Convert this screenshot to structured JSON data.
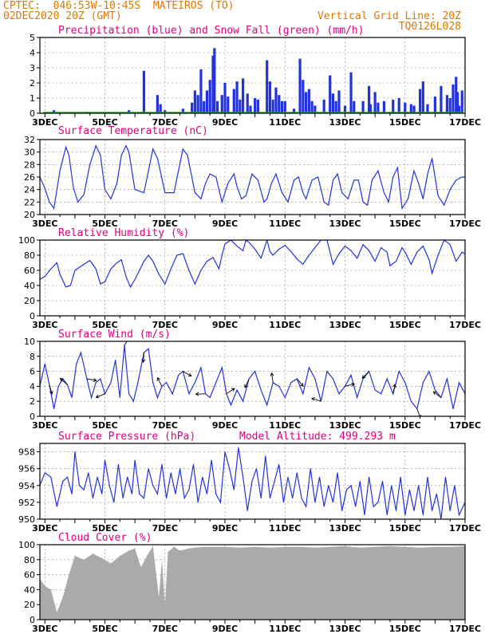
{
  "header": {
    "line1": "CPTEC:  046:53W-10:45S  MATEIROS (TO)",
    "line2": "02DEC2020 20Z (GMT)",
    "grid_note": "Vertical Grid Line: 20Z",
    "code": "TQ0126L028"
  },
  "colors": {
    "header": "#e07800",
    "title": "#e0007a",
    "line": "#2233dd",
    "rain": "#2233dd",
    "snow": "#22aa22",
    "cloud": "#aaaaaa",
    "axis": "#000000",
    "grid": "#888888"
  },
  "x_labels": [
    "3DEC",
    "5DEC",
    "7DEC",
    "9DEC",
    "11DEC",
    "13DEC",
    "15DEC",
    "17DEC"
  ],
  "x_label_days": [
    3,
    5,
    7,
    9,
    11,
    13,
    15,
    17
  ],
  "x_range_days": [
    2.8333,
    17.0
  ],
  "chart_data": [
    {
      "type": "bar",
      "title": "Precipitation (blue) and Snow Fall (green) (mm/h)",
      "ylim": [
        0,
        5
      ],
      "yticks": [
        0,
        1,
        2,
        3,
        4,
        5
      ],
      "series": [
        {
          "name": "Precipitation",
          "x": [
            3.3,
            4.4,
            5.8,
            6.3,
            6.75,
            6.85,
            7.0,
            7.6,
            7.9,
            8.0,
            8.1,
            8.2,
            8.3,
            8.4,
            8.5,
            8.6,
            8.65,
            8.75,
            8.9,
            9.0,
            9.1,
            9.3,
            9.4,
            9.5,
            9.6,
            9.75,
            9.85,
            10.0,
            10.1,
            10.4,
            10.5,
            10.6,
            10.7,
            10.8,
            10.9,
            11.0,
            11.3,
            11.5,
            11.6,
            11.7,
            11.8,
            11.9,
            12.0,
            12.3,
            12.5,
            12.6,
            12.7,
            12.8,
            13.0,
            13.2,
            13.3,
            13.6,
            13.8,
            13.85,
            14.0,
            14.1,
            14.3,
            14.6,
            14.8,
            15.0,
            15.2,
            15.3,
            15.5,
            15.6,
            15.75,
            16.0,
            16.2,
            16.4,
            16.5,
            16.6,
            16.7,
            16.75,
            16.8,
            16.9
          ],
          "values": [
            0.2,
            0.1,
            0.2,
            2.8,
            1.2,
            0.6,
            0.2,
            0.3,
            0.7,
            1.5,
            1.2,
            2.9,
            0.8,
            1.5,
            2.2,
            3.8,
            4.3,
            0.8,
            1.2,
            2.0,
            1.1,
            1.6,
            2.1,
            0.9,
            2.3,
            1.3,
            0.5,
            1.0,
            0.9,
            3.5,
            2.1,
            0.9,
            1.7,
            1.2,
            0.8,
            0.8,
            0.3,
            3.6,
            2.2,
            1.4,
            1.6,
            0.8,
            0.5,
            0.9,
            2.5,
            1.3,
            0.8,
            1.5,
            0.5,
            2.7,
            0.8,
            0.8,
            1.8,
            0.6,
            1.4,
            0.7,
            0.8,
            0.9,
            1.0,
            0.7,
            0.6,
            0.5,
            1.6,
            2.1,
            0.6,
            1.1,
            1.8,
            1.2,
            1.0,
            1.9,
            2.4,
            1.4,
            0.5,
            1.5
          ]
        },
        {
          "name": "Snow Fall",
          "x": [],
          "values": []
        }
      ]
    },
    {
      "type": "line",
      "title": "Surface Temperature (nC)",
      "ylim": [
        20,
        32
      ],
      "yticks": [
        20,
        22,
        24,
        26,
        28,
        30,
        32
      ],
      "x": [
        2.83,
        3.0,
        3.15,
        3.3,
        3.5,
        3.7,
        3.8,
        3.95,
        4.1,
        4.3,
        4.5,
        4.7,
        4.85,
        5.0,
        5.2,
        5.4,
        5.55,
        5.7,
        5.8,
        6.0,
        6.3,
        6.45,
        6.6,
        6.75,
        7.0,
        7.3,
        7.45,
        7.6,
        7.75,
        8.0,
        8.2,
        8.35,
        8.5,
        8.7,
        8.9,
        9.1,
        9.3,
        9.4,
        9.55,
        9.7,
        9.9,
        10.1,
        10.3,
        10.4,
        10.55,
        10.7,
        10.9,
        11.1,
        11.3,
        11.45,
        11.6,
        11.7,
        11.9,
        12.1,
        12.3,
        12.45,
        12.6,
        12.75,
        12.9,
        13.1,
        13.3,
        13.45,
        13.6,
        13.75,
        13.9,
        14.1,
        14.3,
        14.45,
        14.6,
        14.75,
        14.9,
        15.1,
        15.3,
        15.45,
        15.6,
        15.75,
        15.9,
        16.1,
        16.3,
        16.5,
        16.7,
        16.9,
        17.0
      ],
      "values": [
        26,
        24.2,
        22.0,
        21.0,
        27.0,
        30.8,
        29.5,
        24.3,
        22.0,
        23.2,
        28.0,
        31.0,
        29.5,
        24.0,
        22.5,
        25.0,
        29.5,
        31.0,
        30.0,
        24.0,
        23.5,
        27.0,
        30.5,
        29.0,
        23.5,
        23.5,
        27.0,
        30.5,
        29.5,
        23.5,
        22.5,
        25.0,
        26.5,
        26.0,
        22.0,
        25.0,
        26.5,
        24.5,
        22.5,
        23.0,
        26.5,
        25.5,
        22.0,
        22.5,
        25.0,
        26.5,
        23.5,
        22.0,
        25.5,
        26.0,
        23.5,
        22.5,
        25.5,
        26.0,
        22.0,
        21.5,
        25.5,
        26.5,
        23.5,
        22.5,
        25.5,
        25.5,
        22.0,
        21.5,
        25.5,
        27.0,
        23.5,
        22.0,
        26.0,
        27.5,
        21.0,
        22.5,
        27.0,
        25.0,
        22.5,
        26.5,
        29.0,
        23.0,
        21.5,
        24.0,
        25.5,
        26.0,
        26.0
      ]
    },
    {
      "type": "line",
      "title": "Relative Humidity (%)",
      "ylim": [
        0,
        100
      ],
      "yticks": [
        0,
        20,
        40,
        60,
        80,
        100
      ],
      "x": [
        2.83,
        3.0,
        3.2,
        3.4,
        3.5,
        3.7,
        3.85,
        4.0,
        4.3,
        4.5,
        4.7,
        4.85,
        5.0,
        5.2,
        5.4,
        5.55,
        5.7,
        5.85,
        6.0,
        6.3,
        6.45,
        6.6,
        6.8,
        7.0,
        7.2,
        7.4,
        7.6,
        7.8,
        8.0,
        8.2,
        8.4,
        8.6,
        8.8,
        8.9,
        9.0,
        9.2,
        9.4,
        9.6,
        9.7,
        9.8,
        10.0,
        10.2,
        10.4,
        10.5,
        10.6,
        10.8,
        11.0,
        11.2,
        11.4,
        11.6,
        11.8,
        12.0,
        12.2,
        12.4,
        12.5,
        12.6,
        12.8,
        13.0,
        13.2,
        13.4,
        13.6,
        13.8,
        14.0,
        14.2,
        14.4,
        14.5,
        14.7,
        14.9,
        15.0,
        15.2,
        15.4,
        15.6,
        15.8,
        15.9,
        16.1,
        16.3,
        16.5,
        16.7,
        16.9,
        17.0
      ],
      "values": [
        48,
        52,
        62,
        70,
        55,
        38,
        40,
        60,
        68,
        73,
        62,
        42,
        45,
        62,
        70,
        74,
        52,
        38,
        48,
        72,
        80,
        72,
        55,
        42,
        62,
        80,
        82,
        60,
        42,
        60,
        72,
        77,
        62,
        80,
        95,
        100,
        92,
        86,
        100,
        97,
        88,
        76,
        100,
        85,
        80,
        88,
        93,
        85,
        75,
        68,
        80,
        90,
        100,
        100,
        84,
        68,
        82,
        92,
        86,
        76,
        94,
        86,
        72,
        90,
        84,
        66,
        72,
        90,
        84,
        68,
        84,
        92,
        74,
        56,
        80,
        100,
        94,
        72,
        84,
        82
      ]
    },
    {
      "type": "line",
      "title": "Surface Wind (m/s)",
      "ylim": [
        0,
        10
      ],
      "yticks": [
        0,
        2,
        4,
        6,
        8,
        10
      ],
      "x": [
        2.83,
        3.0,
        3.15,
        3.3,
        3.45,
        3.6,
        3.75,
        3.9,
        4.05,
        4.2,
        4.4,
        4.55,
        4.7,
        4.85,
        5.0,
        5.2,
        5.35,
        5.5,
        5.65,
        5.8,
        5.95,
        6.1,
        6.3,
        6.45,
        6.6,
        6.75,
        6.9,
        7.05,
        7.25,
        7.45,
        7.6,
        7.8,
        8.0,
        8.2,
        8.35,
        8.5,
        8.7,
        8.9,
        9.05,
        9.2,
        9.4,
        9.6,
        9.8,
        10.0,
        10.2,
        10.4,
        10.6,
        10.8,
        11.0,
        11.2,
        11.4,
        11.6,
        11.8,
        12.0,
        12.2,
        12.4,
        12.6,
        12.8,
        13.0,
        13.2,
        13.4,
        13.6,
        13.8,
        14.0,
        14.2,
        14.4,
        14.6,
        14.8,
        15.0,
        15.2,
        15.4,
        15.6,
        15.8,
        16.0,
        16.2,
        16.4,
        16.6,
        16.8,
        17.0
      ],
      "values": [
        4,
        7.0,
        4.2,
        1.0,
        4.0,
        5.0,
        4.2,
        2.5,
        7.0,
        8.5,
        5.0,
        2.5,
        4.5,
        5.0,
        3.0,
        4.5,
        7.5,
        2.5,
        9.5,
        3.0,
        2.0,
        4.5,
        8.5,
        9.0,
        4.5,
        2.5,
        4.0,
        4.5,
        3.0,
        5.5,
        6.0,
        3.0,
        4.5,
        6.5,
        3.0,
        2.5,
        4.5,
        6.5,
        3.0,
        1.5,
        3.5,
        2.0,
        5.0,
        6.0,
        3.5,
        1.5,
        4.5,
        4.0,
        2.5,
        4.5,
        5.0,
        3.0,
        6.5,
        5.0,
        2.0,
        6.0,
        5.0,
        3.0,
        4.0,
        5.5,
        2.5,
        5.0,
        6.0,
        3.5,
        3.0,
        5.0,
        3.0,
        6.0,
        4.5,
        2.0,
        1.0,
        4.5,
        6.0,
        3.5,
        2.5,
        5.0,
        1.0,
        4.5,
        3.0
      ]
    },
    {
      "type": "line",
      "title": "Surface Pressure (hPa)",
      "annotation": "Model Altitude: 499.293 m",
      "ylim": [
        950,
        959
      ],
      "yticks": [
        950,
        952,
        954,
        956,
        958
      ],
      "x": [
        2.83,
        3.0,
        3.2,
        3.4,
        3.6,
        3.75,
        3.9,
        4.0,
        4.15,
        4.3,
        4.45,
        4.6,
        4.75,
        4.9,
        5.0,
        5.15,
        5.3,
        5.45,
        5.6,
        5.75,
        5.9,
        6.0,
        6.15,
        6.3,
        6.45,
        6.6,
        6.75,
        6.9,
        7.05,
        7.2,
        7.35,
        7.5,
        7.65,
        7.8,
        7.95,
        8.1,
        8.25,
        8.4,
        8.55,
        8.7,
        8.85,
        9.0,
        9.15,
        9.3,
        9.45,
        9.6,
        9.75,
        9.9,
        10.05,
        10.2,
        10.35,
        10.5,
        10.65,
        10.8,
        10.95,
        11.1,
        11.25,
        11.4,
        11.55,
        11.7,
        11.85,
        12.0,
        12.15,
        12.3,
        12.45,
        12.6,
        12.75,
        12.9,
        13.05,
        13.2,
        13.35,
        13.5,
        13.65,
        13.8,
        13.95,
        14.1,
        14.25,
        14.4,
        14.55,
        14.7,
        14.85,
        15.0,
        15.15,
        15.3,
        15.45,
        15.6,
        15.75,
        15.9,
        16.05,
        16.2,
        16.35,
        16.5,
        16.65,
        16.8,
        17.0
      ],
      "values": [
        954,
        955.5,
        955,
        951.5,
        954.5,
        955,
        953,
        958,
        954,
        953.5,
        955.5,
        952.5,
        955,
        953,
        957,
        954,
        952,
        956.5,
        952.5,
        955,
        953,
        957,
        953,
        952.5,
        956,
        954,
        953,
        956.5,
        952.5,
        955.5,
        953,
        956,
        952.5,
        953.5,
        956.5,
        952,
        955,
        953,
        957,
        953,
        952,
        958,
        956,
        953.5,
        958.5,
        955,
        951,
        954.5,
        956,
        952.5,
        957.5,
        952.5,
        954.5,
        956.5,
        952,
        955,
        952.5,
        955.5,
        952.5,
        951.5,
        956,
        952,
        955,
        951.5,
        954,
        952,
        955.5,
        951,
        953.5,
        954,
        951.5,
        954.5,
        950.5,
        955,
        951.5,
        952,
        954.5,
        950.5,
        954,
        951,
        955,
        950.5,
        953.5,
        951,
        954,
        950.5,
        955,
        951,
        953,
        950,
        955,
        951,
        954,
        950.5,
        952
      ]
    },
    {
      "type": "area",
      "title": "Cloud Cover (%)",
      "ylim": [
        0,
        100
      ],
      "yticks": [
        0,
        20,
        40,
        60,
        80,
        100
      ],
      "x": [
        2.83,
        3.0,
        3.2,
        3.4,
        3.6,
        3.8,
        4.0,
        4.3,
        4.6,
        4.9,
        5.2,
        5.5,
        5.8,
        6.0,
        6.2,
        6.4,
        6.6,
        6.8,
        6.9,
        7.0,
        7.1,
        7.3,
        7.5,
        7.8,
        8.0,
        8.3,
        8.6,
        9.0,
        9.5,
        10.0,
        10.5,
        11.0,
        11.5,
        12.0,
        12.5,
        13.0,
        13.5,
        14.0,
        14.5,
        15.0,
        15.5,
        16.0,
        16.5,
        17.0
      ],
      "values": [
        55,
        45,
        40,
        10,
        30,
        60,
        85,
        80,
        88,
        82,
        75,
        85,
        92,
        95,
        70,
        85,
        98,
        30,
        80,
        20,
        90,
        97,
        92,
        95,
        96,
        97,
        97,
        97,
        96,
        97,
        96,
        97,
        97,
        96,
        97,
        98,
        96,
        97,
        98,
        97,
        96,
        97,
        97,
        98
      ]
    }
  ]
}
